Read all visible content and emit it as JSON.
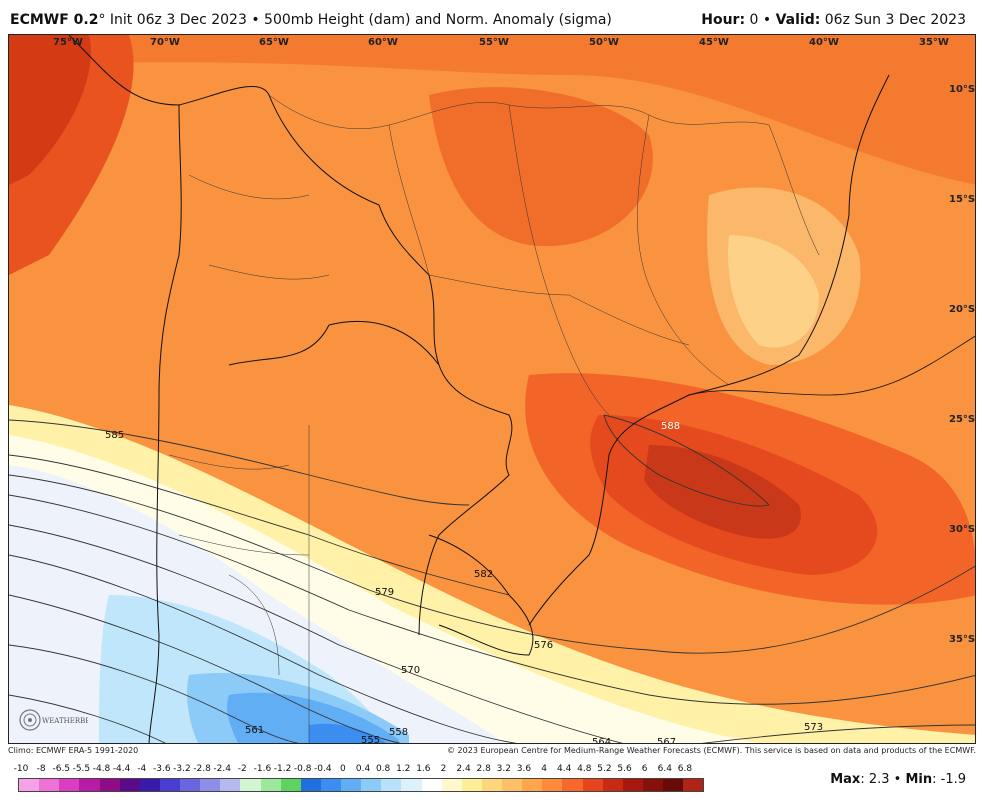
{
  "header": {
    "model": "ECMWF 0.2",
    "degree": "°",
    "init": " Init 06z 3 Dec 2023",
    "sep": " • ",
    "product": "500mb Height (dam) and Norm. Anomaly (sigma)",
    "hour_label": "Hour:",
    "hour_value": " 0",
    "valid_sep": " • ",
    "valid_label": "Valid:",
    "valid_value": " 06z Sun 3 Dec 2023"
  },
  "map": {
    "longitudes": [
      "75°W",
      "70°W",
      "65°W",
      "60°W",
      "55°W",
      "50°W",
      "45°W",
      "40°W",
      "35°W"
    ],
    "latitudes": [
      "10°S",
      "15°S",
      "20°S",
      "25°S",
      "30°S",
      "35°S"
    ],
    "contour_labels": [
      "585",
      "588",
      "582",
      "579",
      "576",
      "570",
      "564",
      "567",
      "573",
      "561",
      "558",
      "555"
    ]
  },
  "credits": {
    "climo": "Climo: ECMWF ERA-5 1991-2020",
    "copyright": "© 2023 European Centre for Medium-Range Weather Forecasts (ECMWF). This service is based on data and products of the ECMWF."
  },
  "logo": {
    "text": "WEATHERBELL"
  },
  "colorbar": {
    "labels": [
      "-10",
      "-8",
      "-6.5",
      "-5.5",
      "-4.8",
      "-4.4",
      "-4",
      "-3.6",
      "-3.2",
      "-2.8",
      "-2.4",
      "-2",
      "-1.6",
      "-1.2",
      "-0.8",
      "-0.4",
      "0",
      "0.4",
      "0.8",
      "1.2",
      "1.6",
      "2",
      "2.4",
      "2.8",
      "3.2",
      "3.6",
      "4",
      "4.4",
      "4.8",
      "5.2",
      "5.6",
      "6",
      "6.4",
      "6.8"
    ],
    "colors": [
      "#f5a3e6",
      "#ee72d6",
      "#db3ec2",
      "#b81ca6",
      "#8e0d86",
      "#5b0a8a",
      "#3a1aa8",
      "#4a3ed1",
      "#6a66e0",
      "#8e8ee8",
      "#b6b8f0",
      "#d2f5d2",
      "#9ce89c",
      "#5fd35f",
      "#1e6fe0",
      "#3b8df0",
      "#62aef5",
      "#8ccaf8",
      "#b6e2fb",
      "#dcf1fc",
      "#ffffff",
      "#fff8cc",
      "#ffee99",
      "#ffd77a",
      "#ffbf66",
      "#ffa64d",
      "#ff8a3a",
      "#f8682a",
      "#e8441c",
      "#c92a14",
      "#a8180e",
      "#86100a",
      "#6a0a06",
      "#b02418"
    ]
  },
  "maxmin": {
    "max_label": "Max",
    "max_value": ": 2.3",
    "sep": " • ",
    "min_label": "Min",
    "min_value": ": -1.9"
  }
}
